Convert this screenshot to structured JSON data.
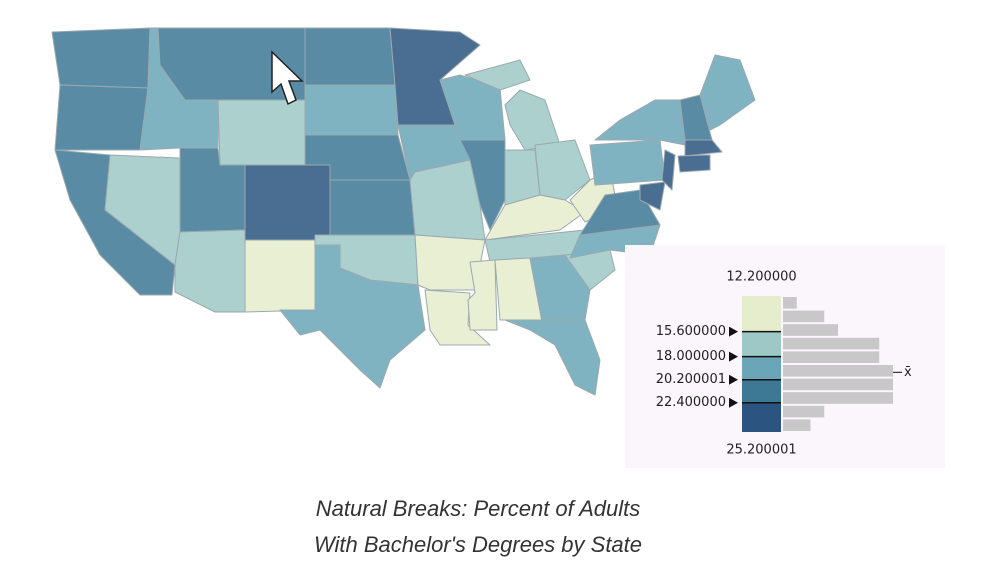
{
  "legend": {
    "breaks": [
      {
        "value": 12.2,
        "label": "12.200000"
      },
      {
        "value": 15.6,
        "label": "15.600000"
      },
      {
        "value": 18.0,
        "label": "18.000000"
      },
      {
        "value": 20.200001,
        "label": "20.200001"
      },
      {
        "value": 22.4,
        "label": "22.400000"
      },
      {
        "value": 25.200001,
        "label": "25.200001"
      }
    ],
    "class_colors": [
      "#e6edcc",
      "#9dc8c6",
      "#6aa6b8",
      "#3d7895",
      "#2b5580"
    ],
    "histogram": {
      "bins": [
        12.2,
        13.5,
        14.8,
        16.1,
        17.4,
        18.7,
        20.0,
        21.3,
        22.6,
        23.9,
        25.2
      ],
      "counts": [
        1,
        3,
        4,
        7,
        7,
        8,
        8,
        8,
        3,
        2
      ],
      "color": "#c8c8c8"
    },
    "mean": 19.5,
    "mean_label": "x̄"
  },
  "caption": {
    "lines": [
      "Natural Breaks: Percent of Adults",
      "With Bachelor's Degrees by State"
    ]
  }
}
